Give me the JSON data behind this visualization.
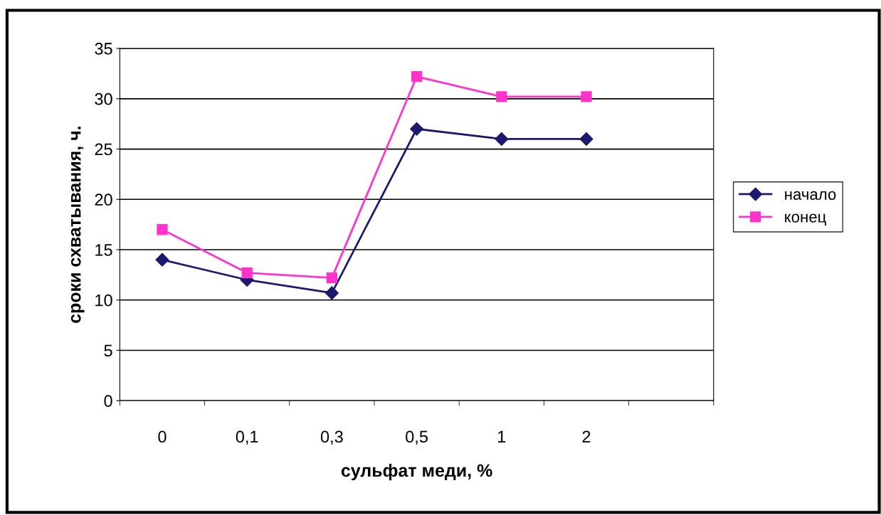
{
  "chart_data": {
    "type": "line",
    "xlabel": "сульфат меди, %",
    "ylabel": "сроки схватывания, ч.",
    "categories": [
      "0",
      "0,1",
      "0,3",
      "0,5",
      "1",
      "2",
      null
    ],
    "series": [
      {
        "name": "начало",
        "color": "#1c1a6e",
        "marker": "diamond",
        "values": [
          14,
          12,
          10.7,
          27,
          26,
          26,
          null
        ]
      },
      {
        "name": "конец",
        "color": "#ff33cc",
        "marker": "square",
        "values": [
          17,
          12.7,
          12.2,
          32.2,
          30.2,
          30.2,
          null
        ]
      }
    ],
    "ylim": [
      0,
      35
    ],
    "yticks": [
      0,
      5,
      10,
      15,
      20,
      25,
      30,
      35
    ],
    "grid": "y",
    "legend": "right"
  }
}
